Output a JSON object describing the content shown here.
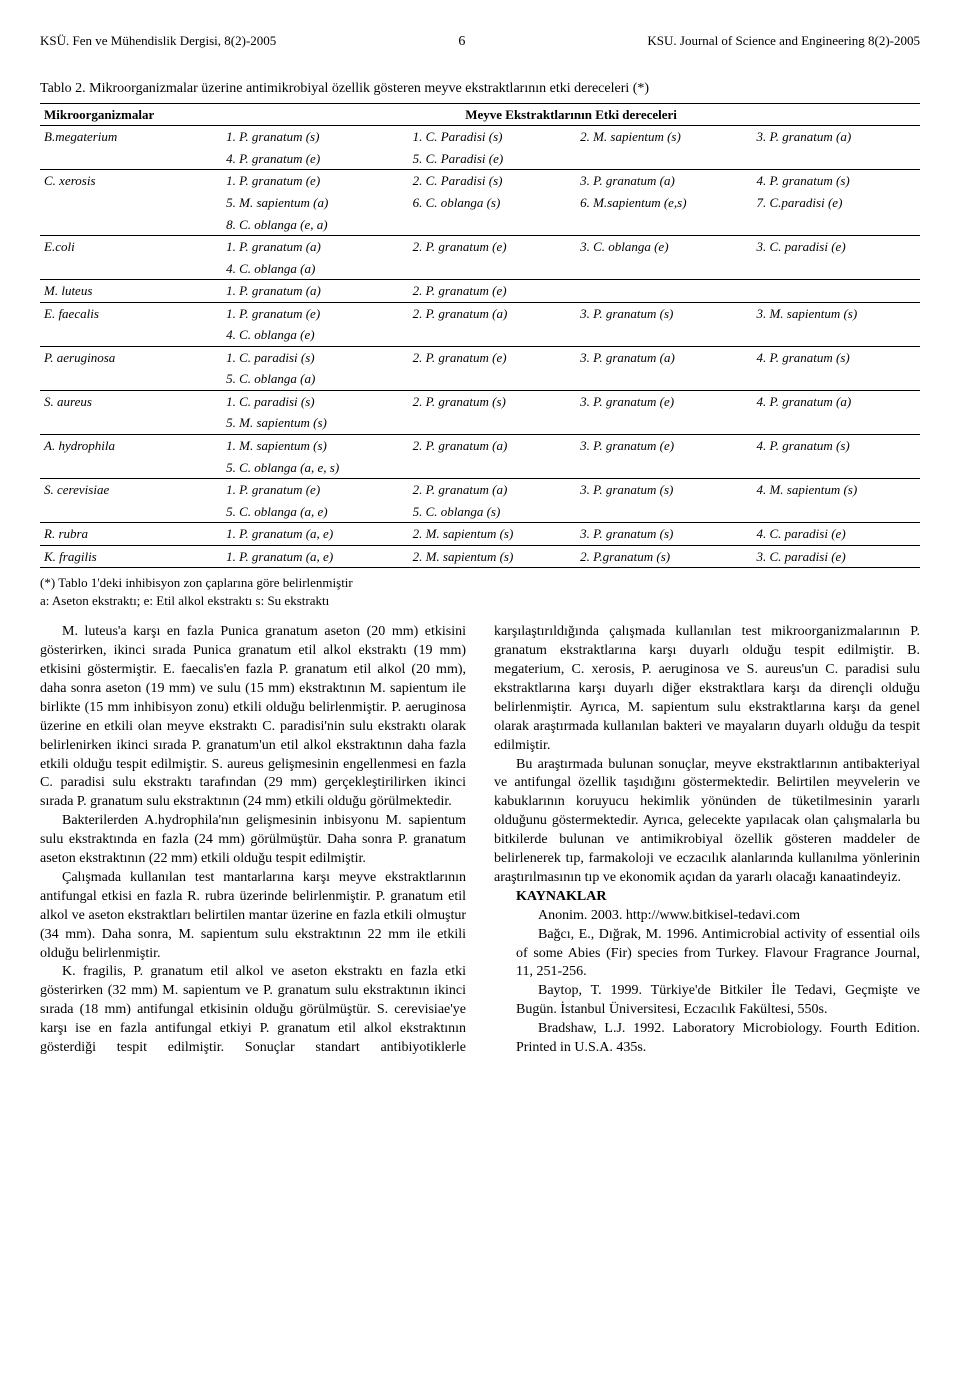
{
  "header": {
    "left": "KSÜ. Fen ve Mühendislik Dergisi, 8(2)-2005",
    "page": "6",
    "right": "KSU. Journal of Science and Engineering 8(2)-2005"
  },
  "table": {
    "caption": "Tablo 2. Mikroorganizmalar üzerine antimikrobiyal özellik gösteren meyve ekstraktlarının etki dereceleri (*)",
    "head_col1": "Mikroorganizmalar",
    "head_span": "Meyve Ekstraktlarının Etki dereceleri",
    "rows": [
      {
        "org": "B.megaterium",
        "c": [
          "1. P. granatum (s)",
          "1. C. Paradisi (s)",
          "2. M. sapientum (s)",
          "3. P. granatum (a)"
        ],
        "l2": [
          "4. P. granatum (e)",
          "5. C. Paradisi (e)",
          "",
          ""
        ]
      },
      {
        "org": "C. xerosis",
        "c": [
          "1. P. granatum (e)",
          "2. C. Paradisi (s)",
          "3. P. granatum (a)",
          "4. P. granatum (s)"
        ],
        "l2": [
          "5. M. sapientum (a)",
          "6. C. oblanga (s)",
          "6. M.sapientum (e,s)",
          "7. C.paradisi (e)"
        ],
        "l3": [
          "8. C. oblanga (e, a)",
          "",
          "",
          ""
        ]
      },
      {
        "org": "E.coli",
        "c": [
          "1. P. granatum (a)",
          "2. P. granatum (e)",
          "3. C. oblanga (e)",
          "3. C. paradisi (e)"
        ],
        "l2": [
          "4. C. oblanga (a)",
          "",
          "",
          ""
        ]
      },
      {
        "org": "M. luteus",
        "c": [
          "1. P. granatum (a)",
          "2. P. granatum (e)",
          "",
          ""
        ]
      },
      {
        "org": "E. faecalis",
        "c": [
          "1. P. granatum (e)",
          "2. P. granatum (a)",
          "3. P. granatum (s)",
          "3. M. sapientum (s)"
        ],
        "l2": [
          "4. C. oblanga (e)",
          "",
          "",
          ""
        ]
      },
      {
        "org": "P. aeruginosa",
        "c": [
          "1. C. paradisi (s)",
          "2. P. granatum (e)",
          "3. P. granatum (a)",
          "4. P. granatum (s)"
        ],
        "l2": [
          "5. C. oblanga (a)",
          "",
          "",
          ""
        ]
      },
      {
        "org": "S. aureus",
        "c": [
          "1. C. paradisi (s)",
          "2. P. granatum (s)",
          "3. P. granatum (e)",
          "4. P. granatum (a)"
        ],
        "l2": [
          "5. M. sapientum (s)",
          "",
          "",
          ""
        ]
      },
      {
        "org": "A. hydrophila",
        "c": [
          "1. M. sapientum (s)",
          "2. P. granatum (a)",
          "3. P. granatum (e)",
          "4. P. granatum (s)"
        ],
        "l2": [
          "5. C. oblanga (a, e, s)",
          "",
          "",
          ""
        ]
      },
      {
        "org": "S. cerevisiae",
        "c": [
          "1. P. granatum (e)",
          "2. P. granatum (a)",
          "3. P. granatum (s)",
          "4. M. sapientum (s)"
        ],
        "l2": [
          "5. C. oblanga (a, e)",
          "5. C. oblanga (s)",
          "",
          ""
        ]
      },
      {
        "org": "R. rubra",
        "c": [
          "1. P. granatum (a, e)",
          "2. M. sapientum (s)",
          "3. P. granatum (s)",
          "4. C. paradisi (e)"
        ]
      },
      {
        "org": "K. fragilis",
        "c": [
          "1. P. granatum (a, e)",
          "2. M. sapientum (s)",
          "2. P.granatum (s)",
          "3. C. paradisi (e)"
        ]
      }
    ],
    "footnote1": "(*) Tablo 1'deki inhibisyon zon çaplarına göre belirlenmiştir",
    "footnote2": "a: Aseton ekstraktı; e: Etil alkol ekstraktı s: Su ekstraktı"
  },
  "body": {
    "p1": "M. luteus'a karşı en fazla Punica granatum aseton (20 mm) etkisini gösterirken, ikinci sırada Punica granatum etil alkol ekstraktı (19 mm) etkisini göstermiştir. E. faecalis'en fazla P. granatum etil alkol (20 mm), daha sonra aseton (19 mm) ve sulu (15 mm) ekstraktının M. sapientum ile birlikte (15 mm inhibisyon zonu) etkili olduğu belirlenmiştir. P. aeruginosa üzerine en etkili olan meyve ekstraktı C. paradisi'nin sulu ekstraktı olarak belirlenirken ikinci sırada P. granatum'un etil alkol ekstraktının daha fazla etkili olduğu tespit edilmiştir. S. aureus gelişmesinin engellenmesi en fazla C. paradisi sulu ekstraktı tarafından (29 mm) gerçekleştirilirken ikinci sırada P. granatum sulu ekstraktının (24 mm) etkili olduğu görülmektedir.",
    "p2": "Bakterilerden A.hydrophila'nın gelişmesinin inbisyonu M. sapientum sulu ekstraktında en fazla (24 mm) görülmüştür. Daha sonra P. granatum aseton ekstraktının (22 mm) etkili olduğu tespit edilmiştir.",
    "p3": "Çalışmada kullanılan test mantarlarına karşı meyve ekstraktlarının antifungal etkisi en fazla R. rubra üzerinde belirlenmiştir. P. granatum etil alkol ve aseton ekstraktları belirtilen mantar üzerine en fazla etkili olmuştur (34 mm). Daha sonra, M. sapientum sulu ekstraktının 22 mm ile etkili olduğu belirlenmiştir.",
    "p4": "K. fragilis, P. granatum etil alkol ve aseton ekstraktı en fazla etki gösterirken (32 mm) M. sapientum ve P. granatum sulu ekstraktının ikinci sırada (18 mm) antifungal etkisinin olduğu görülmüştür. S. cerevisiae'ye karşı ise en fazla antifungal etkiyi P. granatum etil alkol ekstraktının gösterdiği tespit edilmiştir. Sonuçlar standart antibiyotiklerle karşılaştırıldığında çalışmada kullanılan test mikroorganizmalarının P. granatum ekstraktlarına karşı duyarlı olduğu tespit edilmiştir. B. megaterium, C. xerosis, P. aeruginosa ve S. aureus'un C. paradisi sulu ekstraktlarına karşı duyarlı diğer ekstraktlara karşı da dirençli olduğu belirlenmiştir. Ayrıca, M. sapientum sulu ekstraktlarına karşı da genel olarak araştırmada kullanılan bakteri ve mayaların duyarlı olduğu da tespit edilmiştir.",
    "p5": "Bu araştırmada bulunan sonuçlar, meyve ekstraktlarının antibakteriyal ve antifungal özellik taşıdığını göstermektedir. Belirtilen meyvelerin ve kabuklarının koruyucu hekimlik yönünden de tüketilmesinin yararlı olduğunu göstermektedir. Ayrıca, gelecekte yapılacak olan çalışmalarla bu bitkilerde bulunan ve antimikrobiyal özellik gösteren maddeler de belirlenerek tıp, farmakoloji ve eczacılık alanlarında kullanılma yönlerinin araştırılmasının tıp ve ekonomik açıdan da yararlı olacağı kanaatindeyiz.",
    "refs_head": "KAYNAKLAR",
    "ref1": "Anonim. 2003. http://www.bitkisel-tedavi.com",
    "ref2": "Bağcı, E., Dığrak, M. 1996. Antimicrobial activity of essential oils of some Abies (Fir) species from Turkey. Flavour Fragrance Journal, 11, 251-256.",
    "ref3": "Baytop, T. 1999. Türkiye'de Bitkiler İle Tedavi, Geçmişte ve Bugün. İstanbul Üniversitesi, Eczacılık Fakültesi, 550s.",
    "ref4": "Bradshaw, L.J. 1992. Laboratory Microbiology. Fourth Edition. Printed in U.S.A. 435s."
  }
}
